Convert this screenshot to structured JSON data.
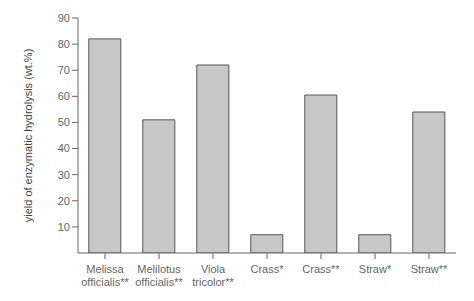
{
  "chart_data": {
    "type": "bar",
    "categories": [
      "Melissa\nofficialis**",
      "Melilotus\nofficialis**",
      "Viola\ntricolor**",
      "Crass*",
      "Crass**",
      "Straw*",
      "Straw**"
    ],
    "values": [
      82,
      51,
      72,
      7,
      60.5,
      7,
      54
    ],
    "color": "#c8c8c8",
    "ylabel": "yield of enzymatic hydrolysis (wt.%)",
    "ylim": [
      0,
      90
    ],
    "yticks": [
      10,
      20,
      30,
      40,
      50,
      60,
      70,
      80,
      90
    ],
    "grid": false
  }
}
